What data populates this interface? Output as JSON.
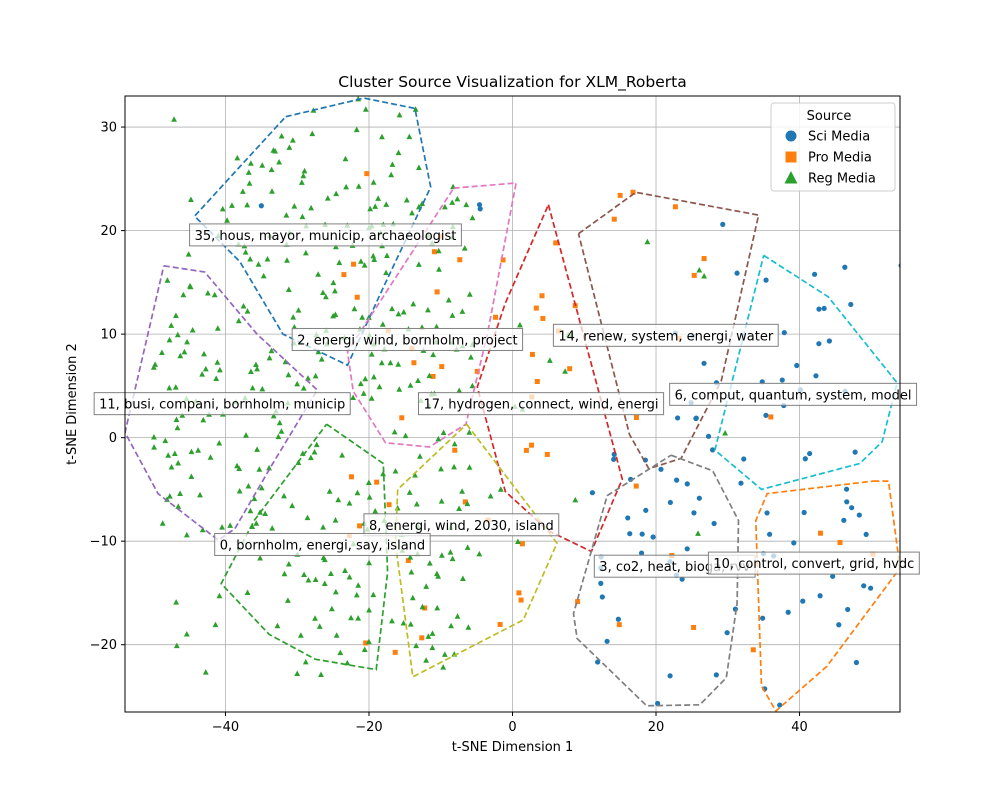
{
  "chart_data": {
    "type": "scatter",
    "title": "Cluster Source Visualization for XLM_Roberta",
    "xlabel": "t-SNE Dimension 1",
    "ylabel": "t-SNE Dimension 2",
    "xlim": [
      -54,
      54
    ],
    "ylim": [
      -26.5,
      33
    ],
    "xticks": [
      -40,
      -20,
      0,
      20,
      40
    ],
    "yticks": [
      -20,
      -10,
      0,
      10,
      20,
      30
    ],
    "grid": true,
    "legend": {
      "title": "Source",
      "placement": "upper right",
      "entries": [
        {
          "name": "Sci Media",
          "marker": "circle",
          "color": "#1f77b4"
        },
        {
          "name": "Pro Media",
          "marker": "square",
          "color": "#ff7f0e"
        },
        {
          "name": "Reg Media",
          "marker": "triangle",
          "color": "#2ca02c"
        }
      ]
    },
    "series": [
      {
        "name": "Sci Media",
        "marker": "circle",
        "color": "#1f77b4",
        "regions": [
          [
            18,
            2,
            54,
            18,
            0.06
          ],
          [
            10,
            -26,
            50,
            2,
            0.1
          ]
        ],
        "points": [
          [
            -35,
            22.4
          ],
          [
            -4.5,
            22.1
          ],
          [
            -4.6,
            22.5
          ],
          [
            29.3,
            20.6
          ]
        ]
      },
      {
        "name": "Pro Media",
        "marker": "square",
        "color": "#ff7f0e",
        "regions": [
          [
            -24,
            -23,
            10,
            20,
            0.035
          ],
          [
            0,
            -20,
            26,
            24,
            0.015
          ],
          [
            32,
            -24,
            52,
            -4,
            0.02
          ]
        ],
        "points": [
          [
            -20.3,
            25.5
          ],
          [
            16.8,
            23.7
          ],
          [
            15,
            23.4
          ],
          [
            22.7,
            22.3
          ],
          [
            26.7,
            17.3
          ],
          [
            36,
            2
          ]
        ]
      },
      {
        "name": "Reg Media",
        "marker": "triangle",
        "color": "#2ca02c",
        "regions": [
          [
            -50,
            -23,
            -6,
            32,
            0.27
          ],
          [
            -6,
            -12,
            8,
            16,
            0.06
          ],
          [
            4,
            -10,
            30,
            22,
            0.015
          ]
        ],
        "points": [
          [
            -21.5,
            32.7
          ],
          [
            -13.5,
            31.7
          ],
          [
            18.8,
            18.9
          ],
          [
            26.7,
            15.6
          ]
        ]
      }
    ],
    "clusters": [
      {
        "label": "35, hous, mayor, municip, archaeologist",
        "color": "#1f77b4",
        "label_pos": [
          -45,
          19.1
        ],
        "hull": [
          [
            -31.6,
            31
          ],
          [
            -20.7,
            32.8
          ],
          [
            -13.6,
            31.8
          ],
          [
            -11.4,
            24.2
          ],
          [
            -18,
            14.5
          ],
          [
            -23,
            7
          ],
          [
            -32,
            10
          ],
          [
            -38,
            17
          ],
          [
            -44.3,
            21.4
          ]
        ]
      },
      {
        "label": "2, energi, wind, bornholm, project",
        "color": "#e377c2",
        "label_pos": [
          -30.7,
          9
        ],
        "hull": [
          [
            -8.2,
            24.1
          ],
          [
            0.5,
            24.6
          ],
          [
            -3.5,
            10
          ],
          [
            -6.5,
            1.3
          ],
          [
            -11.6,
            -0.9
          ],
          [
            -17.7,
            -0.5
          ],
          [
            -22.2,
            4.5
          ],
          [
            -23,
            8.3
          ]
        ]
      },
      {
        "label": "14, renew, system, energi, water",
        "color": "#d62728",
        "label_pos": [
          5.7,
          9.4
        ],
        "hull": [
          [
            5,
            22.5
          ],
          [
            15.3,
            -4
          ],
          [
            11,
            -11
          ],
          [
            5,
            -9
          ],
          [
            -1,
            -5.2
          ],
          [
            -4.9,
            4.9
          ],
          [
            -1,
            13
          ]
        ]
      },
      {
        "label": "11, busi, compani, bornholm, municip",
        "color": "#9467bd",
        "label_pos": [
          -58.3,
          2.8
        ],
        "hull": [
          [
            -48.6,
            16.6
          ],
          [
            -42.9,
            16
          ],
          [
            -35.6,
            10
          ],
          [
            -27.2,
            4.6
          ],
          [
            -33.4,
            -2.5
          ],
          [
            -38.7,
            -8.8
          ],
          [
            -41,
            -9.9
          ],
          [
            -49.4,
            -5.4
          ],
          [
            -54,
            0.5
          ]
        ]
      },
      {
        "label": "17, hydrogen, connect, wind, energi",
        "color": "#8c564b",
        "label_pos": [
          -13.1,
          2.8
        ],
        "hull": [
          [
            9.2,
            19.7
          ],
          [
            17.2,
            23.7
          ],
          [
            34.3,
            21.5
          ],
          [
            29.1,
            5.5
          ],
          [
            23.5,
            -2
          ],
          [
            19,
            -3
          ],
          [
            16.3,
            0.3
          ]
        ]
      },
      {
        "label": "6, comput, quantum, system, model",
        "color": "#17becf",
        "label_pos": [
          21.9,
          3.7
        ],
        "hull": [
          [
            35,
            17.6
          ],
          [
            44,
            13.6
          ],
          [
            53.6,
            5.3
          ],
          [
            51.5,
            -0.4
          ],
          [
            48.4,
            -2.5
          ],
          [
            34.7,
            -5
          ],
          [
            28.2,
            -1.2
          ]
        ]
      },
      {
        "label": "8, energi, wind, 2030, island",
        "color": "#bcbd22",
        "label_pos": [
          -20.7,
          -8.9
        ],
        "hull": [
          [
            -6.4,
            1.3
          ],
          [
            6.2,
            -10.2
          ],
          [
            1.5,
            -17.6
          ],
          [
            -13.9,
            -23.1
          ],
          [
            -16.3,
            -10.2
          ],
          [
            -16,
            -5
          ]
        ]
      },
      {
        "label": "0, bornholm, energi, say, island",
        "color": "#2ca02c",
        "label_pos": [
          -41.5,
          -10.8
        ],
        "hull": [
          [
            -25.9,
            1.3
          ],
          [
            -18,
            -2.5
          ],
          [
            -17.4,
            -13
          ],
          [
            -19,
            -22.4
          ],
          [
            -27.5,
            -21.4
          ],
          [
            -33.9,
            -19
          ],
          [
            -40.6,
            -14.1
          ],
          [
            -36,
            -8
          ]
        ]
      },
      {
        "label": "3, co2, heat, bioga, rvv",
        "color": "#7f7f7f",
        "label_pos": [
          11.4,
          -12.9
        ],
        "hull": [
          [
            22.1,
            -1.7
          ],
          [
            27.9,
            -3.2
          ],
          [
            31.5,
            -8
          ],
          [
            31.3,
            -16
          ],
          [
            29.8,
            -23.2
          ],
          [
            26.1,
            -25.8
          ],
          [
            18.7,
            -25.9
          ],
          [
            9,
            -19.4
          ],
          [
            8.5,
            -17
          ],
          [
            13.2,
            -5.6
          ]
        ]
      },
      {
        "label": "10, control, convert, grid, hvdc",
        "color": "#ff7f0e",
        "label_pos": [
          27.3,
          -12.6
        ],
        "hull": [
          [
            50.3,
            -4.2
          ],
          [
            52.4,
            -4.2
          ],
          [
            54,
            -12.6
          ],
          [
            43.8,
            -22.1
          ],
          [
            36.7,
            -26.4
          ],
          [
            34.7,
            -24
          ],
          [
            33.9,
            -8
          ],
          [
            35.5,
            -5.4
          ]
        ]
      }
    ]
  }
}
